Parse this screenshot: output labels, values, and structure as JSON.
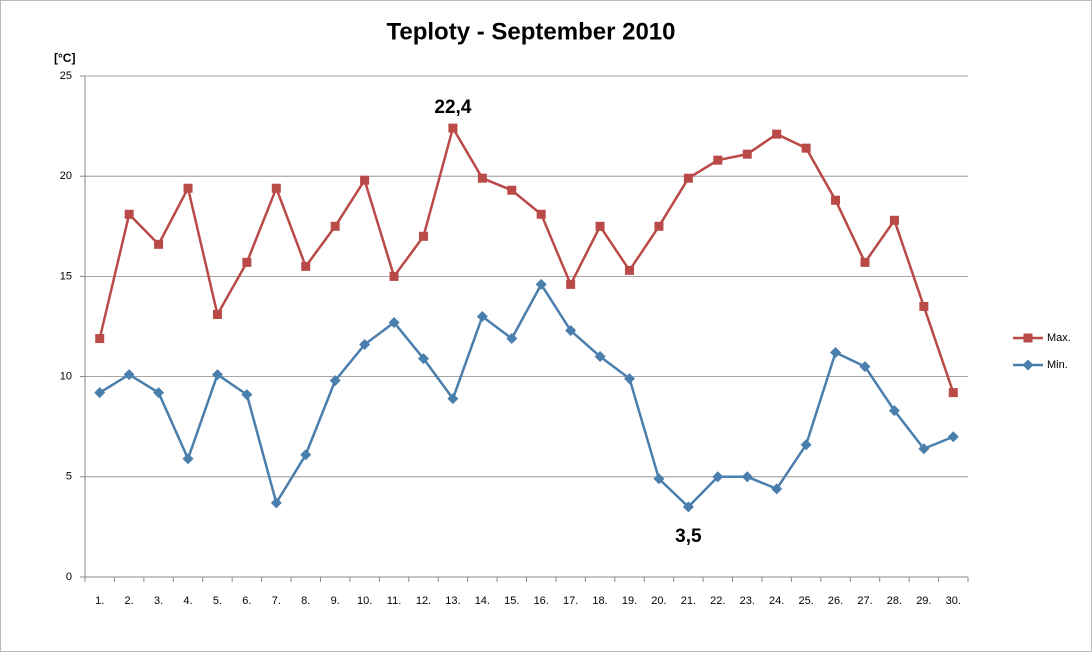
{
  "chart_data": {
    "type": "line",
    "title": "Teploty - September 2010",
    "y_label": "[°C]",
    "categories": [
      "1.",
      "2.",
      "3.",
      "4.",
      "5.",
      "6.",
      "7.",
      "8.",
      "9.",
      "10.",
      "11.",
      "12.",
      "13.",
      "14.",
      "15.",
      "16.",
      "17.",
      "18.",
      "19.",
      "20.",
      "21.",
      "22.",
      "23.",
      "24.",
      "25.",
      "26.",
      "27.",
      "28.",
      "29.",
      "30."
    ],
    "series": [
      {
        "name": "Max.",
        "color": "#b94a48",
        "marker": "square",
        "label_position": "above",
        "values": [
          11.9,
          18.1,
          16.6,
          19.4,
          13.1,
          15.7,
          19.4,
          15.5,
          17.5,
          19.8,
          15.0,
          17.0,
          22.4,
          19.9,
          19.3,
          18.1,
          14.6,
          17.5,
          15.3,
          17.5,
          19.9,
          20.8,
          21.1,
          22.1,
          21.4,
          18.8,
          15.7,
          17.8,
          13.5,
          9.2
        ],
        "value_labels": [
          null,
          null,
          null,
          null,
          null,
          null,
          null,
          null,
          null,
          null,
          null,
          null,
          "22,4",
          null,
          null,
          null,
          null,
          null,
          null,
          null,
          null,
          null,
          null,
          null,
          null,
          null,
          null,
          null,
          null,
          null
        ]
      },
      {
        "name": "Min.",
        "color": "#4a7ead",
        "marker": "diamond",
        "label_position": "below",
        "values": [
          9.2,
          10.1,
          9.2,
          5.9,
          10.1,
          9.1,
          3.7,
          6.1,
          9.8,
          11.6,
          12.7,
          10.9,
          8.9,
          13.0,
          11.9,
          14.6,
          12.3,
          11.0,
          9.9,
          4.9,
          3.5,
          5.0,
          5.0,
          4.4,
          6.6,
          11.2,
          10.5,
          8.3,
          6.4,
          7.0
        ],
        "value_labels": [
          null,
          null,
          null,
          null,
          null,
          null,
          null,
          null,
          null,
          null,
          null,
          null,
          null,
          null,
          null,
          null,
          null,
          null,
          null,
          null,
          "3,5",
          null,
          null,
          null,
          null,
          null,
          null,
          null,
          null,
          null
        ]
      }
    ],
    "ylim": [
      0,
      25
    ],
    "yticks": [
      0,
      5,
      10,
      15,
      20,
      25
    ],
    "grid": true,
    "legend": "right"
  }
}
